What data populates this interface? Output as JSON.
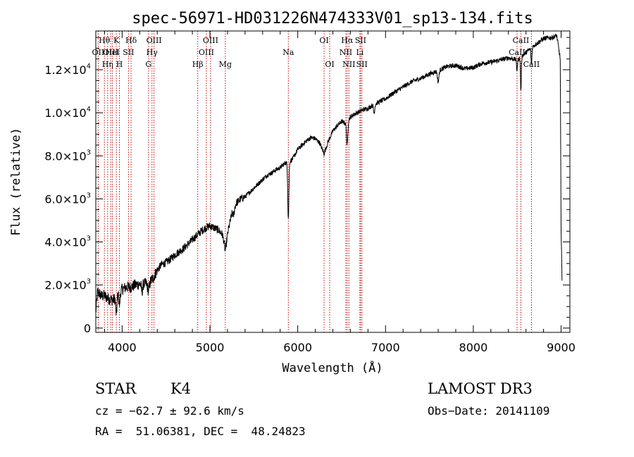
{
  "chart_data": {
    "type": "line",
    "title": "spec-56971-HD031226N474333V01_sp13-134.fits",
    "xlabel": "Wavelength (Å)",
    "ylabel": "Flux (relative)",
    "xlim": [
      3700,
      9100
    ],
    "ylim": [
      -200,
      13800
    ],
    "x_ticks": [
      {
        "value": 4000,
        "label": "4000"
      },
      {
        "value": 5000,
        "label": "5000"
      },
      {
        "value": 6000,
        "label": "6000"
      },
      {
        "value": 7000,
        "label": "7000"
      },
      {
        "value": 8000,
        "label": "8000"
      },
      {
        "value": 9000,
        "label": "9000"
      }
    ],
    "y_ticks": [
      {
        "value": 0,
        "mant": "0",
        "exp": ""
      },
      {
        "value": 2000,
        "mant": "2.0×10",
        "exp": "3"
      },
      {
        "value": 4000,
        "mant": "4.0×10",
        "exp": "3"
      },
      {
        "value": 6000,
        "mant": "6.0×10",
        "exp": "3"
      },
      {
        "value": 8000,
        "mant": "8.0×10",
        "exp": "3"
      },
      {
        "value": 10000,
        "mant": "1.0×10",
        "exp": "4"
      },
      {
        "value": 12000,
        "mant": "1.2×10",
        "exp": "4"
      }
    ],
    "spectrum_anchors": [
      [
        3700,
        700
      ],
      [
        3720,
        1700
      ],
      [
        3760,
        1500
      ],
      [
        3800,
        1500
      ],
      [
        3850,
        1350
      ],
      [
        3900,
        1300
      ],
      [
        3950,
        1600
      ],
      [
        4000,
        1800
      ],
      [
        4050,
        1900
      ],
      [
        4100,
        1900
      ],
      [
        4150,
        2000
      ],
      [
        4200,
        2050
      ],
      [
        4250,
        2050
      ],
      [
        4300,
        2100
      ],
      [
        4350,
        2300
      ],
      [
        4400,
        2700
      ],
      [
        4450,
        2950
      ],
      [
        4500,
        3050
      ],
      [
        4550,
        3200
      ],
      [
        4600,
        3400
      ],
      [
        4650,
        3550
      ],
      [
        4700,
        3700
      ],
      [
        4750,
        3900
      ],
      [
        4800,
        4100
      ],
      [
        4850,
        4300
      ],
      [
        4900,
        4500
      ],
      [
        4950,
        4650
      ],
      [
        5000,
        4750
      ],
      [
        5050,
        4650
      ],
      [
        5100,
        4550
      ],
      [
        5150,
        4300
      ],
      [
        5200,
        4400
      ],
      [
        5250,
        5300
      ],
      [
        5300,
        5800
      ],
      [
        5350,
        6000
      ],
      [
        5400,
        6100
      ],
      [
        5450,
        6300
      ],
      [
        5500,
        6500
      ],
      [
        5550,
        6700
      ],
      [
        5600,
        6900
      ],
      [
        5650,
        7100
      ],
      [
        5700,
        7200
      ],
      [
        5750,
        7350
      ],
      [
        5800,
        7450
      ],
      [
        5850,
        7650
      ],
      [
        5900,
        7700
      ],
      [
        5950,
        7900
      ],
      [
        6000,
        8300
      ],
      [
        6050,
        8500
      ],
      [
        6100,
        8700
      ],
      [
        6150,
        8850
      ],
      [
        6200,
        8800
      ],
      [
        6250,
        8600
      ],
      [
        6300,
        8100
      ],
      [
        6350,
        8700
      ],
      [
        6400,
        9150
      ],
      [
        6450,
        9400
      ],
      [
        6500,
        9600
      ],
      [
        6550,
        9500
      ],
      [
        6600,
        9800
      ],
      [
        6650,
        9950
      ],
      [
        6700,
        10050
      ],
      [
        6750,
        10150
      ],
      [
        6800,
        10200
      ],
      [
        6850,
        10350
      ],
      [
        6900,
        10450
      ],
      [
        6950,
        10550
      ],
      [
        7000,
        10650
      ],
      [
        7100,
        10950
      ],
      [
        7200,
        11200
      ],
      [
        7300,
        11450
      ],
      [
        7400,
        11600
      ],
      [
        7500,
        11800
      ],
      [
        7600,
        11950
      ],
      [
        7700,
        12150
      ],
      [
        7800,
        12200
      ],
      [
        7900,
        12050
      ],
      [
        8000,
        12100
      ],
      [
        8100,
        12300
      ],
      [
        8200,
        12350
      ],
      [
        8300,
        12450
      ],
      [
        8400,
        12550
      ],
      [
        8500,
        12450
      ],
      [
        8600,
        12800
      ],
      [
        8700,
        13150
      ],
      [
        8800,
        13450
      ],
      [
        8900,
        13500
      ],
      [
        8950,
        13600
      ],
      [
        8990,
        12500
      ],
      [
        9000,
        4500
      ],
      [
        9010,
        2300
      ]
    ],
    "absorption_features": [
      {
        "x": 3934,
        "depth": 900,
        "width": 10
      },
      {
        "x": 3969,
        "depth": 600,
        "width": 10
      },
      {
        "x": 4226,
        "depth": 350,
        "width": 10
      },
      {
        "x": 4300,
        "depth": 350,
        "width": 15
      },
      {
        "x": 5175,
        "depth": 700,
        "width": 18
      },
      {
        "x": 5270,
        "depth": 250,
        "width": 10
      },
      {
        "x": 5893,
        "depth": 2600,
        "width": 9
      },
      {
        "x": 6563,
        "depth": 1100,
        "width": 10
      },
      {
        "x": 6870,
        "depth": 400,
        "width": 10
      },
      {
        "x": 7600,
        "depth": 500,
        "width": 12
      },
      {
        "x": 8498,
        "depth": 500,
        "width": 7
      },
      {
        "x": 8542,
        "depth": 1600,
        "width": 7
      },
      {
        "x": 8662,
        "depth": 800,
        "width": 7
      }
    ],
    "lines": [
      {
        "x": 3727,
        "label": "OII",
        "row": 2
      },
      {
        "x": 3798,
        "label": "Hθ",
        "row": 1
      },
      {
        "x": 3835,
        "label": "Hη",
        "row": 3
      },
      {
        "x": 3869,
        "label": "OIII",
        "row": 2
      },
      {
        "x": 3889,
        "label": "HeI",
        "row": 2
      },
      {
        "x": 3934,
        "label": "K",
        "row": 1
      },
      {
        "x": 3969,
        "label": "H",
        "row": 3
      },
      {
        "x": 4072,
        "label": "SII",
        "row": 2
      },
      {
        "x": 4102,
        "label": "Hδ",
        "row": 1
      },
      {
        "x": 4300,
        "label": "G",
        "row": 3
      },
      {
        "x": 4340,
        "label": "Hγ",
        "row": 2
      },
      {
        "x": 4363,
        "label": "OIII",
        "row": 1
      },
      {
        "x": 4861,
        "label": "Hβ",
        "row": 3
      },
      {
        "x": 4959,
        "label": "OIII",
        "row": 2
      },
      {
        "x": 5007,
        "label": "OIII",
        "row": 1
      },
      {
        "x": 5175,
        "label": "Mg",
        "row": 3
      },
      {
        "x": 5893,
        "label": "Na",
        "row": 2
      },
      {
        "x": 6300,
        "label": "OI",
        "row": 1
      },
      {
        "x": 6364,
        "label": "OI",
        "row": 3
      },
      {
        "x": 6548,
        "label": "NII",
        "row": 2
      },
      {
        "x": 6563,
        "label": "Hα",
        "row": 1
      },
      {
        "x": 6583,
        "label": "NII",
        "row": 3
      },
      {
        "x": 6708,
        "label": "Li",
        "row": 2
      },
      {
        "x": 6716,
        "label": "SII",
        "row": 1
      },
      {
        "x": 6731,
        "label": "SII",
        "row": 3
      },
      {
        "x": 8498,
        "label": "CaII",
        "row": 2
      },
      {
        "x": 8542,
        "label": "CaII",
        "row": 1
      },
      {
        "x": 8662,
        "label": "CaII",
        "row": 3
      }
    ],
    "line_color": "#cc0000",
    "spectrum_color": "#000000"
  },
  "footer": {
    "object_type": "STAR",
    "subclass": "K4",
    "survey": "LAMOST DR3",
    "cz": "cz = −62.7 ± 92.6 km/s",
    "obs_date": "Obs−Date: 20141109",
    "coords": "RA =  51.06381, DEC =  48.24823"
  }
}
